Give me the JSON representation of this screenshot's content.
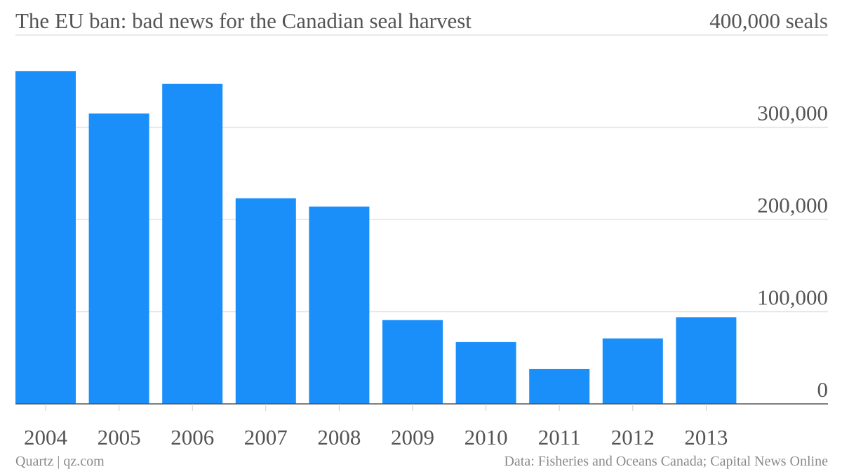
{
  "chart_data": {
    "type": "bar",
    "title": "The EU ban: bad news for the Canadian seal harvest",
    "ylabel_unit": "seals",
    "categories": [
      "2004",
      "2005",
      "2006",
      "2007",
      "2008",
      "2009",
      "2010",
      "2011",
      "2012",
      "2013"
    ],
    "values": [
      361000,
      315000,
      347000,
      223000,
      214000,
      91000,
      67000,
      38000,
      71000,
      94000
    ],
    "ylim": [
      0,
      400000
    ],
    "yticks": [
      0,
      100000,
      200000,
      300000,
      400000
    ],
    "ytick_labels": [
      "0",
      "100,000",
      "200,000",
      "300,000",
      "400,000 seals"
    ],
    "grid": true,
    "bar_color": "#1a8ffa",
    "axis_position": "right"
  },
  "footer": {
    "credit": "Quartz | qz.com",
    "source": "Data: Fisheries and Oceans Canada; Capital News Online"
  }
}
